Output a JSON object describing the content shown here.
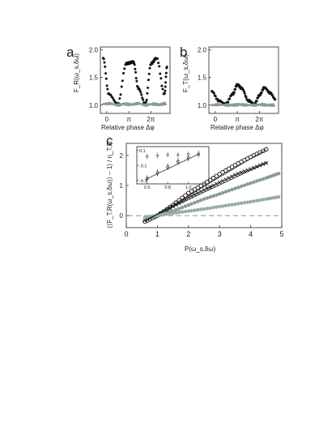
{
  "chart_data": [
    {
      "type": "scatter",
      "panel_label": "a",
      "xlabel": "Relative phase Δφ",
      "ylabel": "F_R(ω_s,δω)",
      "x_ticks": [
        "0",
        "π",
        "2π"
      ],
      "y_ticks": [
        "1.0",
        "1.5",
        "2.0"
      ],
      "xlim": [
        -0.9,
        9.0
      ],
      "ylim": [
        0.85,
        2.05
      ],
      "grid": false,
      "series": [
        {
          "color": "#111111",
          "x": [
            -0.5,
            0.3,
            1.57,
            2.8,
            3.8,
            4.5,
            5.5,
            6.3,
            7.1,
            8.2,
            8.6
          ],
          "y": [
            1.85,
            1.2,
            1.02,
            1.75,
            1.78,
            1.3,
            1.02,
            1.75,
            1.85,
            1.2,
            1.72
          ]
        },
        {
          "color": "#8a9a9a",
          "x": [
            -0.5,
            0.5,
            1.5,
            2.5,
            3.5,
            4.5,
            5.5,
            6.5,
            7.5,
            8.5
          ],
          "y": [
            1.02,
            1.03,
            1.0,
            1.02,
            1.01,
            1.03,
            1.0,
            1.02,
            1.01,
            1.03
          ]
        }
      ]
    },
    {
      "type": "scatter",
      "panel_label": "b",
      "xlabel": "Relative phase Δφ",
      "ylabel": "F_T(ω_s,δω)",
      "x_ticks": [
        "0",
        "π",
        "2π"
      ],
      "y_ticks": [
        "1.0",
        "1.5",
        "2.0"
      ],
      "xlim": [
        -0.9,
        9.0
      ],
      "ylim": [
        0.85,
        2.05
      ],
      "grid": false,
      "series": [
        {
          "color": "#111111",
          "x": [
            -0.5,
            0.5,
            1.5,
            2.5,
            3.14,
            3.8,
            4.7,
            5.6,
            6.3,
            7.0,
            7.8,
            8.6
          ],
          "y": [
            1.25,
            1.08,
            1.02,
            1.2,
            1.37,
            1.3,
            1.08,
            1.02,
            1.18,
            1.32,
            1.22,
            1.1
          ]
        },
        {
          "color": "#8a9a9a",
          "x": [
            -0.5,
            0.5,
            1.5,
            2.5,
            3.5,
            4.5,
            5.5,
            6.5,
            7.5,
            8.5
          ],
          "y": [
            1.0,
            1.01,
            1.0,
            1.0,
            1.01,
            1.0,
            1.0,
            1.01,
            1.0,
            1.0
          ]
        }
      ]
    },
    {
      "type": "scatter",
      "panel_label": "c",
      "xlabel": "P(ω_s,δω)",
      "ylabel": "(⟨F_T,R(ω_s,δω)⟩ − 1) / η_T,R",
      "x_ticks": [
        "0",
        "1",
        "2",
        "3",
        "4",
        "5"
      ],
      "y_ticks": [
        "0",
        "1",
        "2"
      ],
      "xlim": [
        0,
        5
      ],
      "ylim": [
        -0.4,
        2.4
      ],
      "grid": false,
      "reference_line_y": 0,
      "series": [
        {
          "marker": "open-circle",
          "color": "#111111",
          "x": [
            0.6,
            1.0,
            1.5,
            2.0,
            2.5,
            3.0,
            3.5,
            4.0,
            4.5
          ],
          "y": [
            -0.2,
            0.0,
            0.35,
            0.75,
            1.05,
            1.38,
            1.68,
            1.95,
            2.2
          ]
        },
        {
          "marker": "cross",
          "color": "#111111",
          "x": [
            0.6,
            1.0,
            1.5,
            2.0,
            2.5,
            3.0,
            3.5,
            4.0,
            4.5
          ],
          "y": [
            -0.15,
            0.0,
            0.3,
            0.6,
            0.85,
            1.1,
            1.35,
            1.55,
            1.75
          ]
        },
        {
          "marker": "filled-circle",
          "color": "#8a9a9a",
          "x": [
            0.6,
            1.0,
            1.5,
            2.0,
            2.5,
            3.0,
            3.5,
            4.0,
            4.5,
            4.9
          ],
          "y": [
            -0.1,
            0.0,
            0.15,
            0.35,
            0.55,
            0.72,
            0.9,
            1.08,
            1.25,
            1.4
          ]
        },
        {
          "marker": "filled-circle",
          "color": "#9aaaaa",
          "x": [
            0.6,
            1.0,
            1.5,
            2.0,
            2.5,
            3.0,
            3.5,
            4.0,
            4.5,
            4.9
          ],
          "y": [
            -0.05,
            0.0,
            0.08,
            0.15,
            0.22,
            0.3,
            0.38,
            0.46,
            0.55,
            0.62
          ]
        }
      ],
      "inset": {
        "x_ticks": [
          "0.6",
          "0.8",
          "1.0",
          "1.2"
        ],
        "y_ticks": [
          "0.1",
          "-0.1",
          "-0.3"
        ],
        "xlim": [
          0.5,
          1.2
        ],
        "ylim": [
          -0.35,
          0.15
        ],
        "series": [
          {
            "color": "#111111",
            "x": [
              0.6,
              0.7,
              0.8,
              0.9,
              1.0,
              1.1
            ],
            "y": [
              -0.28,
              -0.2,
              -0.12,
              -0.05,
              0.0,
              0.05
            ]
          },
          {
            "color": "#8a9a9a",
            "x": [
              0.6,
              0.7,
              0.8,
              0.9,
              1.0,
              1.1
            ],
            "y": [
              0.02,
              0.03,
              0.04,
              0.04,
              0.05,
              0.06
            ]
          }
        ]
      }
    }
  ]
}
